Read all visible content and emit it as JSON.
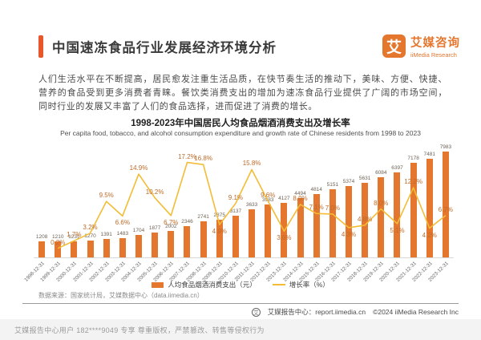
{
  "page": {
    "title": "中国速冻食品行业发展经济环境分析",
    "logo": {
      "mark": "艾",
      "name_cn": "艾媒咨询",
      "name_en": "iiMedia Research"
    },
    "intro": "人们生活水平在不断提高，居民愈发注重生活品质，在快节奏生活的推动下，美味、方便、快捷、营养的食品受到更多消费者青睐。餐饮类消费支出的增加为速冻食品行业提供了广阔的市场空间，同时行业的发展又丰富了人们的食品选择，进而促进了消费的增长。",
    "source_note": "数据来源：国家统计局，艾媒数据中心（data.iimedia.cn）",
    "footer": {
      "badge": "艾",
      "report_center": "艾媒报告中心：report.iimedia.cn",
      "copyright": "©2024  iiMedia Research  Inc"
    },
    "watermark": "艾媒报告中心用户 182****9049 专享 尊重版权，严禁篡改、转售等侵权行为"
  },
  "colors": {
    "accent": "#E7572B",
    "bar": "#E4762D",
    "line": "#F2BC35",
    "growth_label": "#BD6B2A"
  },
  "chart_data": {
    "type": "bar+line",
    "title": "1998-2023年中国居民人均食品烟酒消费支出及增长率",
    "subtitle": "Per capita food, tobacco, and alcohol consumption expenditure and growth rate of Chinese residents from 1998 to 2023",
    "categories": [
      "1998-12-31",
      "1999-12-31",
      "2000-12-31",
      "2001-12-31",
      "2002-12-31",
      "2003-12-31",
      "2004-12-31",
      "2005-12-31",
      "2006-12-31",
      "2007-12-31",
      "2008-12-31",
      "2009-12-31",
      "2010-12-31",
      "2011-12-31",
      "2012-12-31",
      "2013-12-31",
      "2014-12-31",
      "2015-12-31",
      "2016-12-31",
      "2017-12-31",
      "2018-12-31",
      "2019-12-31",
      "2020-12-31",
      "2021-12-31",
      "2022-12-31",
      "2023-12-31"
    ],
    "series": [
      {
        "name": "人均食品烟酒消费支出（元）",
        "kind": "bar",
        "color": "#E4762D",
        "values": [
          1208,
          1210,
          1231,
          1270,
          1391,
          1483,
          1704,
          1877,
          2002,
          2346,
          2741,
          2875,
          3137,
          3633,
          3983,
          4127,
          4494,
          4814,
          5151,
          5374,
          5631,
          6084,
          6397,
          7178,
          7481,
          7983
        ]
      },
      {
        "name": "增长率（%）",
        "kind": "line",
        "color": "#F2BC35",
        "values": [
          null,
          0.2,
          1.7,
          3.2,
          9.5,
          6.6,
          14.9,
          10.2,
          6.7,
          17.2,
          16.8,
          4.9,
          9.1,
          15.8,
          9.6,
          3.6,
          8.9,
          7.1,
          7.0,
          4.3,
          4.8,
          8.0,
          5.1,
          12.2,
          4.2,
          6.7
        ]
      }
    ],
    "ylim": [
      0,
      8000
    ],
    "y2lim": [
      0,
      18
    ],
    "grid": false,
    "legend_position": "bottom"
  }
}
